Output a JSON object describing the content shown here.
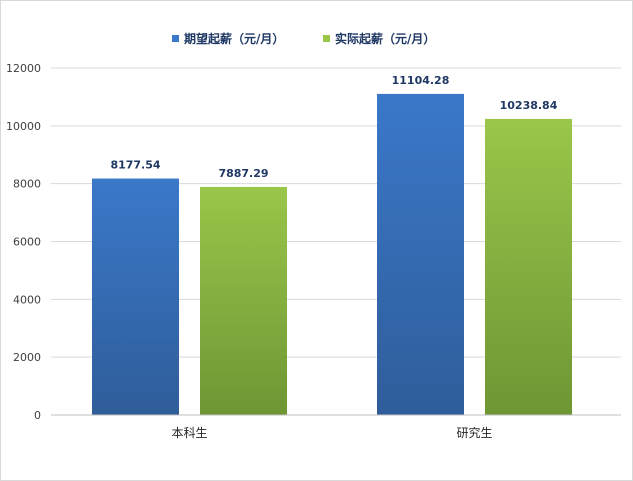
{
  "chart_data": {
    "type": "bar",
    "categories": [
      "本科生",
      "研究生"
    ],
    "series": [
      {
        "name": "期望起薪（元/月）",
        "values": [
          8177.54,
          11104.28
        ],
        "color": "#3a78c9",
        "color_dark": "#2f5d9a"
      },
      {
        "name": "实际起薪（元/月）",
        "values": [
          7887.29,
          10238.84
        ],
        "color": "#9ac64a",
        "color_dark": "#6e9634"
      }
    ],
    "data_labels": [
      [
        "8177.54",
        "11104.28"
      ],
      [
        "7887.29",
        "10238.84"
      ]
    ],
    "yticks": [
      "0",
      "2000",
      "4000",
      "6000",
      "8000",
      "10000",
      "12000"
    ],
    "ylim": [
      0,
      12000
    ],
    "grid": true,
    "legend_position": "top-center",
    "title": "",
    "xlabel": "",
    "ylabel": ""
  }
}
